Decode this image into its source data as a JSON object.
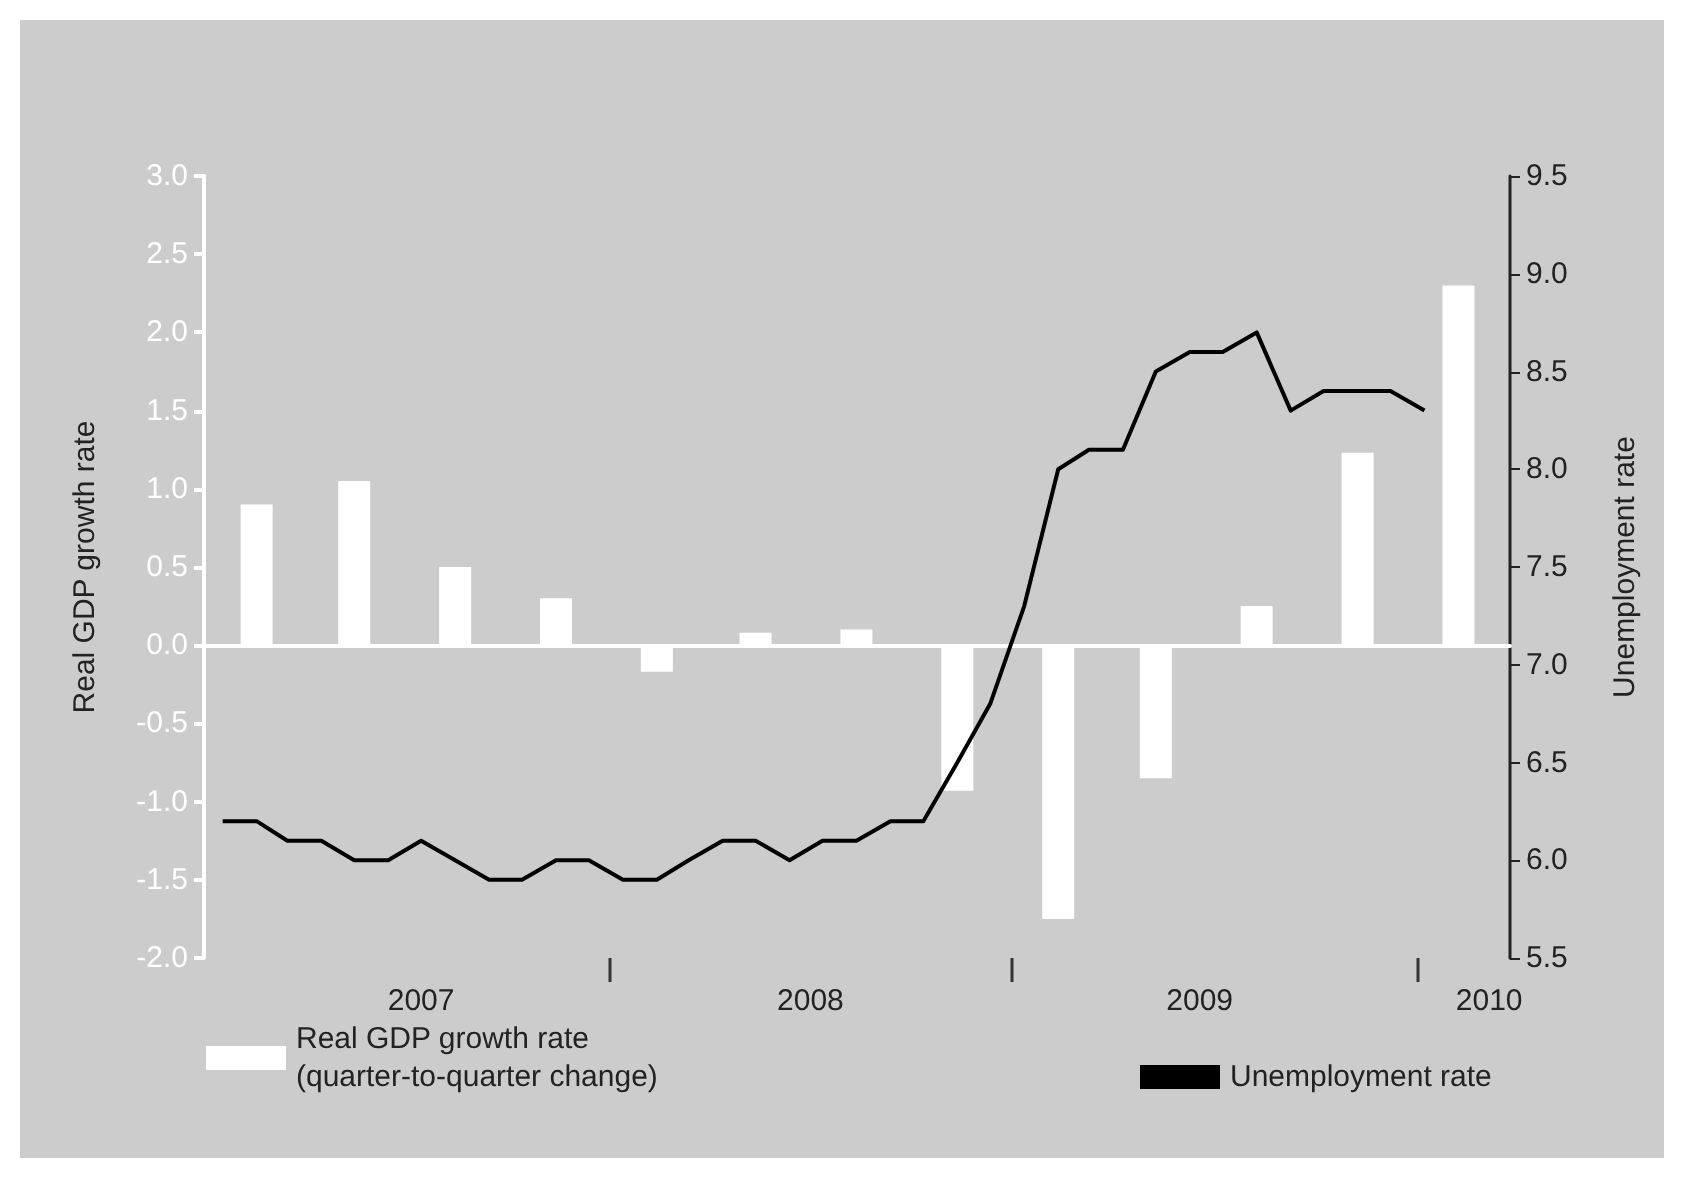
{
  "chart_data": {
    "type": "bar",
    "xlabel": null,
    "ylabel": "Real GDP growth rate",
    "y2label": "Unemployment rate",
    "series": [
      {
        "name": "Real GDP growth rate\n(quarter-to-quarter change)",
        "color": "#ffffff",
        "x": [
          "2007-02",
          "2007-05",
          "2007-08",
          "2007-11",
          "2008-02",
          "2008-05",
          "2008-08",
          "2008-11",
          "2009-02",
          "2009-05",
          "2009-08",
          "2009-11",
          "2010-02"
        ],
        "values": [
          0.9,
          1.05,
          0.5,
          0.3,
          -0.17,
          0.08,
          0.1,
          -0.93,
          -1.75,
          -0.85,
          0.25,
          1.23,
          2.3
        ]
      },
      {
        "name": "Unemployment rate",
        "type": "line",
        "axis": "y2",
        "color": "#000000",
        "x": [
          "2007-01",
          "2007-02",
          "2007-03",
          "2007-04",
          "2007-05",
          "2007-06",
          "2007-07",
          "2007-08",
          "2007-09",
          "2007-10",
          "2007-11",
          "2007-12",
          "2008-01",
          "2008-02",
          "2008-03",
          "2008-04",
          "2008-05",
          "2008-06",
          "2008-07",
          "2008-08",
          "2008-09",
          "2008-10",
          "2008-11",
          "2008-12",
          "2009-01",
          "2009-02",
          "2009-03",
          "2009-04",
          "2009-05",
          "2009-06",
          "2009-07",
          "2009-08",
          "2009-09",
          "2009-10",
          "2009-11",
          "2009-12",
          "2010-01"
        ],
        "values": [
          6.2,
          6.2,
          6.1,
          6.1,
          6.0,
          6.0,
          6.1,
          6.0,
          5.9,
          5.9,
          6.0,
          6.0,
          5.9,
          5.9,
          6.0,
          6.1,
          6.1,
          6.0,
          6.1,
          6.1,
          6.2,
          6.2,
          6.5,
          6.8,
          7.3,
          8.0,
          8.1,
          8.1,
          8.5,
          8.6,
          8.6,
          8.7,
          8.3,
          8.4,
          8.4,
          8.4,
          8.3
        ]
      }
    ],
    "xlim": [
      "2006-12-15",
      "2010-03-20"
    ],
    "xticks": [
      {
        "value": "2007-07-01",
        "label": "2007"
      },
      {
        "value": "2007-12-20",
        "label": null
      },
      {
        "value": "2008-06-20",
        "label": "2008"
      },
      {
        "value": "2008-12-20",
        "label": null
      },
      {
        "value": "2009-06-10",
        "label": "2009"
      },
      {
        "value": "2009-12-25",
        "label": null
      },
      {
        "value": "2010-03-01",
        "label": "2010"
      }
    ],
    "ylim": [
      -2,
      3
    ],
    "yticks": [
      {
        "value": -2,
        "label": "-2.0"
      },
      {
        "value": -1.5,
        "label": "-1.5"
      },
      {
        "value": -1,
        "label": "-1.0"
      },
      {
        "value": -0.5,
        "label": "-0.5"
      },
      {
        "value": 0,
        "label": "0.0"
      },
      {
        "value": 0.5,
        "label": "0.5"
      },
      {
        "value": 1,
        "label": "1.0"
      },
      {
        "value": 1.5,
        "label": "1.5"
      },
      {
        "value": 2,
        "label": "2.0"
      },
      {
        "value": 2.5,
        "label": "2.5"
      },
      {
        "value": 3,
        "label": "3.0"
      }
    ],
    "y2lim": [
      5.5,
      9.5
    ],
    "y2ticks": [
      {
        "value": 5.5,
        "label": "5.5"
      },
      {
        "value": 6,
        "label": "6.0"
      },
      {
        "value": 6.5,
        "label": "6.5"
      },
      {
        "value": 7,
        "label": "7.0"
      },
      {
        "value": 7.5,
        "label": "7.5"
      },
      {
        "value": 8,
        "label": "8.0"
      },
      {
        "value": 8.5,
        "label": "8.5"
      },
      {
        "value": 9,
        "label": "9.0"
      },
      {
        "value": 9.5,
        "label": "9.5"
      }
    ],
    "legend": "bottom",
    "marker": "none",
    "line_style": "solid"
  }
}
